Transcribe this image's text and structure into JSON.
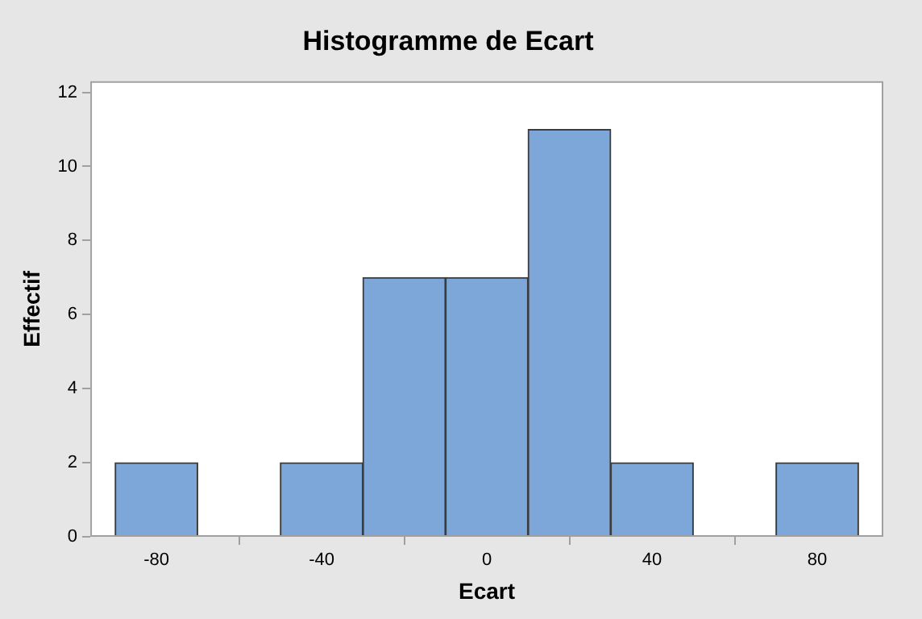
{
  "chart_data": {
    "type": "histogram",
    "title": "Histogramme de Ecart",
    "xlabel": "Ecart",
    "ylabel": "Effectif",
    "bins": [
      -90,
      -70,
      -50,
      -30,
      -10,
      10,
      30,
      50,
      70,
      90
    ],
    "values": [
      2,
      0,
      2,
      7,
      7,
      11,
      2,
      0,
      2
    ],
    "color": "#7da7d9",
    "xlim": [
      -96,
      96
    ],
    "xticks": [
      -80,
      -40,
      0,
      40,
      80
    ],
    "ylim": [
      0,
      12.3
    ],
    "yticks": [
      0,
      2,
      4,
      6,
      8,
      10,
      12
    ],
    "grid": false,
    "legend": false
  }
}
